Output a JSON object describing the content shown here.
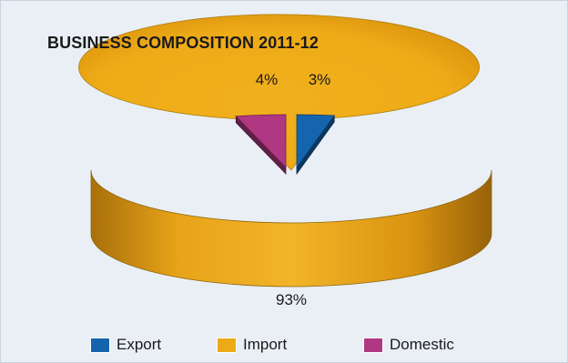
{
  "chart_data": {
    "type": "pie",
    "title": "BUSINESS COMPOSITION 2011-12",
    "categories": [
      "Export",
      "Import",
      "Domestic"
    ],
    "values": [
      3,
      93,
      4
    ],
    "labels": [
      "3%",
      "93%",
      "4%"
    ],
    "colors": {
      "Export": "#1565ae",
      "Import": "#ecaa16",
      "Domestic": "#b03882"
    },
    "exploded": [
      "Export",
      "Domestic"
    ],
    "three_d": true,
    "legend_position": "bottom"
  },
  "colors": {
    "background": "#e9eff5",
    "border": "#c9d3dc"
  }
}
